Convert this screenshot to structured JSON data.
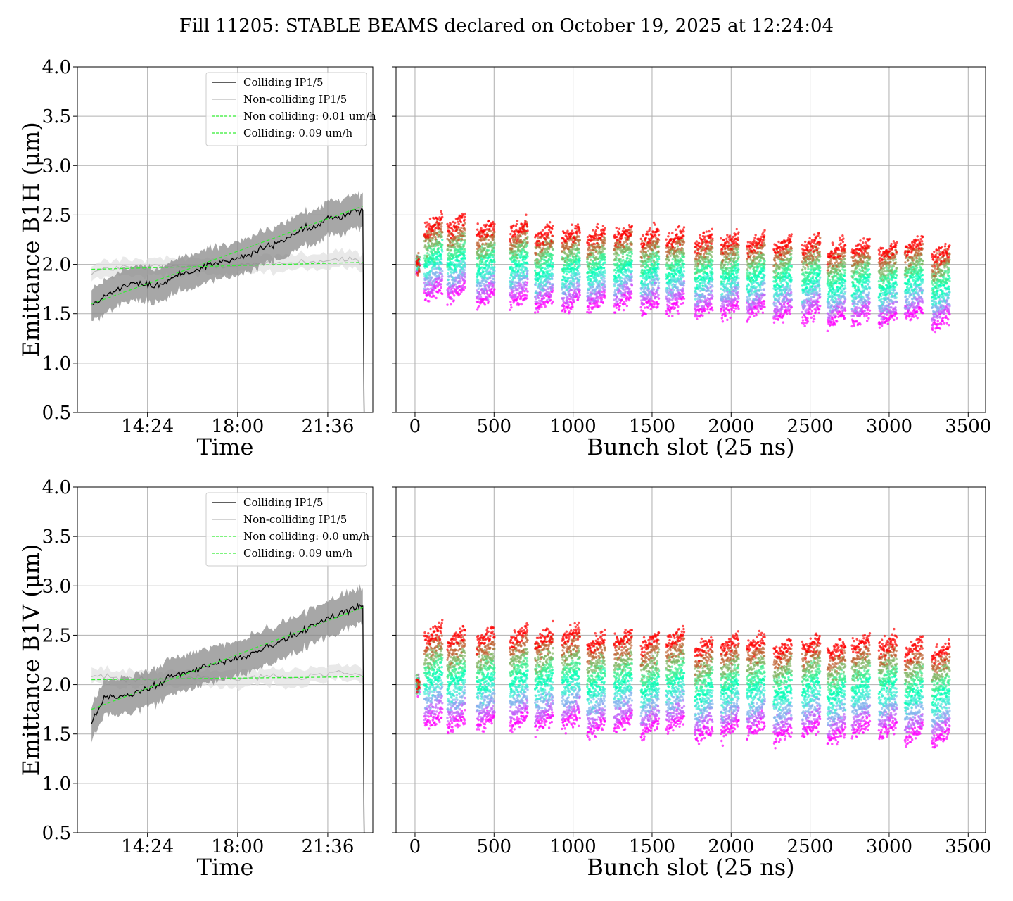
{
  "figure": {
    "title": "Fill 11205: STABLE BEAMS declared on October 19, 2025 at 12:24:04"
  },
  "colors": {
    "colliding": "#000000",
    "non_colliding": "#bbbbbb",
    "band_colliding": "#8a8a8a",
    "band_non_colliding": "#e0e0e0",
    "fit": "#33ee33",
    "grid": "#b0b0b0"
  },
  "chart_data": [
    {
      "type": "line",
      "panel": "top-left",
      "title": "",
      "xlabel": "Time",
      "ylabel": "Emittance B1H (μm)",
      "ylim": [
        0.5,
        4.0
      ],
      "yticks": [
        "0.5",
        "1.0",
        "1.5",
        "2.0",
        "2.5",
        "3.0",
        "3.5",
        "4.0"
      ],
      "xlim": [
        "11:36",
        "23:24"
      ],
      "xticks": [
        "14:24",
        "18:00",
        "21:36"
      ],
      "grid": true,
      "legend_position": "top-right",
      "legend": [
        "Colliding IP1/5",
        "Non-colliding IP1/5",
        "Non colliding: 0.01 um/h",
        "Colliding: 0.09 um/h"
      ],
      "series": [
        {
          "name": "Colliding IP1/5",
          "x": [
            "12:10",
            "12:40",
            "13:10",
            "13:40",
            "14:10",
            "14:40",
            "15:10",
            "15:40",
            "16:10",
            "16:40",
            "17:10",
            "17:40",
            "18:10",
            "18:40",
            "19:10",
            "19:40",
            "20:10",
            "20:40",
            "21:10",
            "21:40",
            "22:10",
            "22:40",
            "23:00"
          ],
          "y": [
            1.6,
            1.68,
            1.74,
            1.8,
            1.8,
            1.78,
            1.82,
            1.9,
            1.93,
            1.98,
            2.02,
            2.03,
            2.07,
            2.12,
            2.18,
            2.22,
            2.3,
            2.35,
            2.38,
            2.48,
            2.48,
            2.56,
            2.55
          ],
          "band": 0.17
        },
        {
          "name": "Non-colliding IP1/5",
          "x": [
            "12:10",
            "13:10",
            "14:10",
            "15:10",
            "16:10",
            "17:10",
            "18:10",
            "19:10",
            "20:10",
            "21:10",
            "22:10",
            "23:00"
          ],
          "y": [
            1.92,
            1.97,
            1.96,
            1.98,
            1.97,
            1.99,
            2.0,
            2.0,
            2.02,
            2.03,
            2.05,
            2.02
          ],
          "band": 0.08
        },
        {
          "name": "Non colliding: 0.01 um/h",
          "x": [
            "12:10",
            "23:00"
          ],
          "y": [
            1.95,
            2.02
          ]
        },
        {
          "name": "Colliding: 0.09 um/h",
          "x": [
            "12:10",
            "23:00"
          ],
          "y": [
            1.6,
            2.59
          ]
        }
      ]
    },
    {
      "type": "scatter",
      "panel": "top-right",
      "title": "",
      "xlabel": "Bunch slot (25 ns)",
      "ylabel": "",
      "xlim": [
        -120,
        3610
      ],
      "xticks": [
        "0",
        "500",
        "1000",
        "1500",
        "2000",
        "2500",
        "3000",
        "3500"
      ],
      "ylim": [
        0.5,
        4.0
      ],
      "grid": true,
      "colormap": "rainbow (violet = early, red = late)",
      "trains_start": [
        10,
        60,
        205,
        390,
        600,
        760,
        930,
        1090,
        1260,
        1430,
        1590,
        1770,
        1935,
        2100,
        2270,
        2450,
        2610,
        2765,
        2935,
        3100,
        3270
      ],
      "first_time_mean": 1.7,
      "last_time_mean": 2.38
    },
    {
      "type": "line",
      "panel": "bottom-left",
      "title": "",
      "xlabel": "Time",
      "ylabel": "Emittance B1V (μm)",
      "ylim": [
        0.5,
        4.0
      ],
      "yticks": [
        "0.5",
        "1.0",
        "1.5",
        "2.0",
        "2.5",
        "3.0",
        "3.5",
        "4.0"
      ],
      "xlim": [
        "11:36",
        "23:24"
      ],
      "xticks": [
        "14:24",
        "18:00",
        "21:36"
      ],
      "grid": true,
      "legend_position": "top-right",
      "legend": [
        "Colliding IP1/5",
        "Non-colliding IP1/5",
        "Non colliding: 0.0 um/h",
        "Colliding: 0.09 um/h"
      ],
      "series": [
        {
          "name": "Colliding IP1/5",
          "x": [
            "12:10",
            "12:40",
            "13:10",
            "13:40",
            "14:10",
            "14:40",
            "15:10",
            "15:40",
            "16:10",
            "16:40",
            "17:10",
            "17:40",
            "18:10",
            "18:40",
            "19:10",
            "19:40",
            "20:10",
            "20:40",
            "21:10",
            "21:40",
            "22:10",
            "22:40",
            "23:00"
          ],
          "y": [
            1.62,
            1.85,
            1.88,
            1.9,
            1.95,
            1.98,
            2.05,
            2.1,
            2.15,
            2.18,
            2.2,
            2.25,
            2.27,
            2.32,
            2.38,
            2.42,
            2.5,
            2.55,
            2.62,
            2.68,
            2.72,
            2.78,
            2.8
          ],
          "band": 0.18
        },
        {
          "name": "Non-colliding IP1/5",
          "x": [
            "12:10",
            "13:10",
            "14:10",
            "15:10",
            "16:10",
            "17:10",
            "18:10",
            "19:10",
            "20:10",
            "21:10",
            "22:10",
            "23:00"
          ],
          "y": [
            2.1,
            2.08,
            2.05,
            2.06,
            2.07,
            2.05,
            2.06,
            2.08,
            2.05,
            2.1,
            2.1,
            2.08
          ],
          "band": 0.08
        },
        {
          "name": "Non colliding: 0.0 um/h",
          "x": [
            "12:10",
            "23:00"
          ],
          "y": [
            2.05,
            2.08
          ]
        },
        {
          "name": "Colliding: 0.09 um/h",
          "x": [
            "12:10",
            "23:00"
          ],
          "y": [
            1.75,
            2.78
          ]
        }
      ]
    },
    {
      "type": "scatter",
      "panel": "bottom-right",
      "title": "",
      "xlabel": "Bunch slot (25 ns)",
      "ylabel": "",
      "xlim": [
        -120,
        3610
      ],
      "xticks": [
        "0",
        "500",
        "1000",
        "1500",
        "2000",
        "2500",
        "3000",
        "3500"
      ],
      "ylim": [
        0.5,
        4.0
      ],
      "grid": true,
      "colormap": "rainbow (violet = early, red = late)",
      "trains_start": [
        10,
        60,
        205,
        390,
        600,
        760,
        930,
        1090,
        1260,
        1430,
        1590,
        1770,
        1935,
        2100,
        2270,
        2450,
        2610,
        2765,
        2935,
        3100,
        3270
      ],
      "first_time_mean": 1.65,
      "last_time_mean": 2.5
    }
  ]
}
